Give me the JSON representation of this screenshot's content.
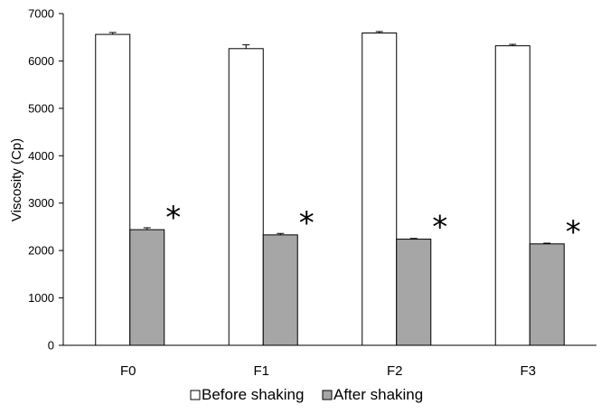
{
  "chart_data": {
    "type": "bar",
    "title": "",
    "xlabel": "",
    "ylabel": "Viscosity (Cp)",
    "ylim": [
      0,
      7000
    ],
    "yticks": [
      0,
      1000,
      2000,
      3000,
      4000,
      5000,
      6000,
      7000
    ],
    "categories": [
      "F0",
      "F1",
      "F2",
      "F3"
    ],
    "series": [
      {
        "name": "Before shaking",
        "values": [
          6560,
          6260,
          6590,
          6320
        ],
        "errors": [
          40,
          80,
          30,
          30
        ],
        "color": "#ffffff"
      },
      {
        "name": "After shaking",
        "values": [
          2440,
          2330,
          2240,
          2140
        ],
        "errors": [
          40,
          30,
          15,
          15
        ],
        "color": "#a6a6a6"
      }
    ],
    "annotations": [
      "*",
      "*",
      "*",
      "*"
    ],
    "legend_position": "bottom-center",
    "grid": false
  }
}
